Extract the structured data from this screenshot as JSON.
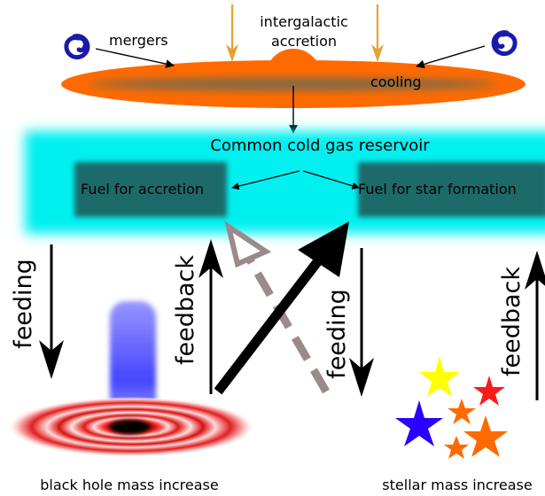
{
  "labels": {
    "mergers": "mergers",
    "accretion_line1": "intergalactic",
    "accretion_line2": "accretion",
    "cooling": "cooling",
    "reservoir": "Common cold gas reservoir",
    "fuel_accretion": "Fuel for accretion",
    "fuel_star_formation": "Fuel for star formation",
    "feeding_left": "feeding",
    "feedback_left": "feedback",
    "feeding_right": "feeding",
    "feedback_right": "feedback",
    "bh_mass": "black hole mass increase",
    "stellar_mass": "stellar mass increase"
  },
  "colors": {
    "galaxy_orange": "#ff6a00",
    "galaxy_core": "#7a6a4a",
    "accretion_arrow": "#e8a030",
    "reservoir_cyan": "#00f0f0",
    "fuel_box": "#1a6a6a",
    "spiral_blue": "#1a1aaa",
    "disk_red": "#e02020",
    "jet_blue": "#3030ff",
    "dashed_arrow": "#9a8a8a",
    "star_yellow": "#ffff00",
    "star_red": "#ff1a1a",
    "star_blue": "#2a00ff",
    "star_orange": "#ff6a00"
  }
}
